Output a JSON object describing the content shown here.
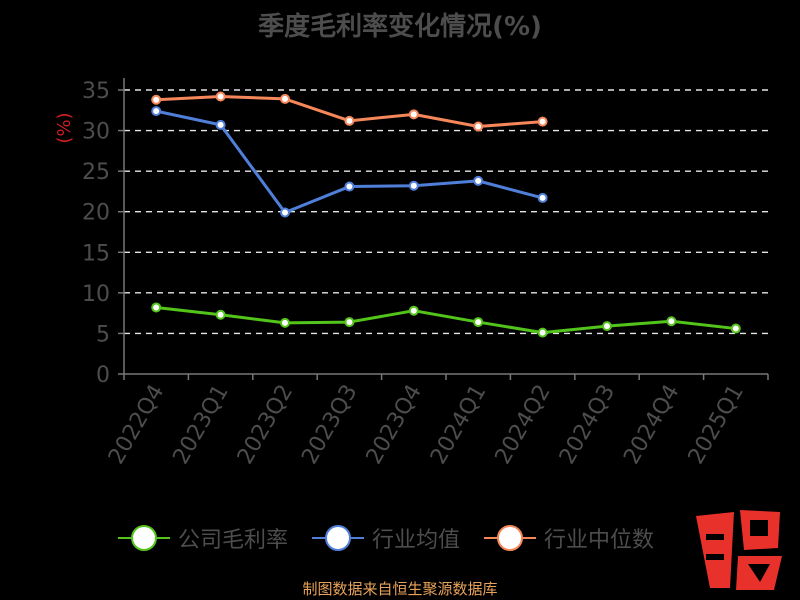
{
  "title": "季度毛利率变化情况(%)",
  "source": "制图数据来自恒生聚源数据库",
  "logo_text": "股",
  "chart_data": {
    "type": "line",
    "title": "季度毛利率变化情况(%)",
    "ylabel": "(%)",
    "xlabel": "",
    "ylim": [
      0,
      35
    ],
    "yticks": [
      0,
      5,
      10,
      15,
      20,
      25,
      30,
      35
    ],
    "grid": "horizontal dashed",
    "legend_position": "bottom",
    "categories": [
      "2022Q4",
      "2023Q1",
      "2023Q2",
      "2023Q3",
      "2023Q4",
      "2024Q1",
      "2024Q2",
      "2024Q3",
      "2024Q4",
      "2025Q1"
    ],
    "series": [
      {
        "name": "公司毛利率",
        "color": "#52c41a",
        "values": [
          8.2,
          7.3,
          6.3,
          6.4,
          7.8,
          6.4,
          5.1,
          5.9,
          6.5,
          5.6
        ]
      },
      {
        "name": "行业均值",
        "color": "#4f7fd9",
        "values": [
          32.4,
          30.7,
          19.9,
          23.1,
          23.2,
          23.8,
          21.7,
          null,
          null,
          null
        ]
      },
      {
        "name": "行业中位数",
        "color": "#f5875a",
        "values": [
          33.8,
          34.2,
          33.9,
          31.2,
          32.0,
          30.5,
          31.1,
          null,
          null,
          null
        ]
      }
    ]
  }
}
